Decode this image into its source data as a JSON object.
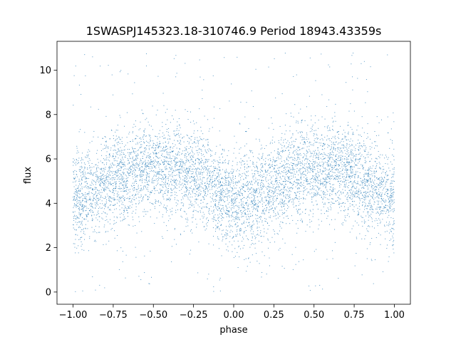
{
  "chart_data": {
    "type": "scatter",
    "title": "1SWASPJ145323.18-310746.9 Period 18943.43359s",
    "xlabel": "phase",
    "ylabel": "flux",
    "xlim": [
      -1.1,
      1.1
    ],
    "ylim": [
      -0.55,
      11.3
    ],
    "x_ticks": [
      -1.0,
      -0.75,
      -0.5,
      -0.25,
      0.0,
      0.25,
      0.5,
      0.75,
      1.0
    ],
    "x_tick_labels": [
      "−1.00",
      "−0.75",
      "−0.50",
      "−0.25",
      "0.00",
      "0.25",
      "0.50",
      "0.75",
      "1.00"
    ],
    "y_ticks": [
      0,
      2,
      4,
      6,
      8,
      10
    ],
    "y_tick_labels": [
      "0",
      "2",
      "4",
      "6",
      "8",
      "10"
    ],
    "grid": false,
    "legend": "none",
    "marker_color": "#1f77b4",
    "phase_range": [
      -1.0,
      1.0
    ],
    "flux_range": [
      0.0,
      10.8
    ],
    "trend": {
      "phase": [
        -1.0,
        -0.9,
        -0.8,
        -0.7,
        -0.6,
        -0.5,
        -0.4,
        -0.3,
        -0.2,
        -0.1,
        0.0,
        0.1,
        0.2,
        0.3,
        0.4,
        0.5,
        0.6,
        0.7,
        0.8,
        0.9,
        1.0
      ],
      "flux": [
        4.2,
        4.5,
        4.9,
        5.3,
        5.5,
        5.6,
        5.6,
        5.4,
        5.1,
        4.5,
        4.1,
        4.2,
        4.6,
        5.0,
        5.4,
        5.6,
        5.6,
        5.4,
        5.0,
        4.6,
        4.2
      ]
    },
    "scatter_sd": 1.05
  }
}
